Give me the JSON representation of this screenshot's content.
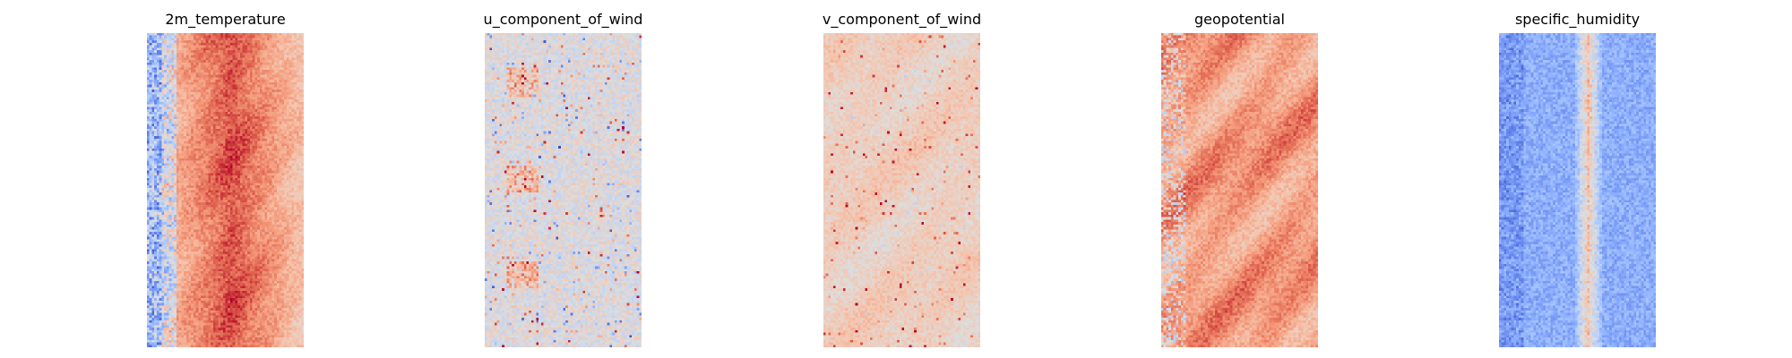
{
  "chart_data": [
    {
      "type": "heatmap",
      "title": "2m_temperature",
      "colormap": "coolwarm",
      "grid": false,
      "axes": "off",
      "cells": {
        "cols": 64,
        "rows": 128
      },
      "pattern": "warm vertical band in centre, cool dots along left edge",
      "mean_level": 0.78
    },
    {
      "type": "heatmap",
      "title": "u_component_of_wind",
      "colormap": "coolwarm",
      "grid": false,
      "axes": "off",
      "cells": {
        "cols": 64,
        "rows": 128
      },
      "pattern": "mostly neutral grey with scattered red and blue streaks",
      "mean_level": 0.5
    },
    {
      "type": "heatmap",
      "title": "v_component_of_wind",
      "colormap": "coolwarm",
      "grid": false,
      "axes": "off",
      "cells": {
        "cols": 64,
        "rows": 128
      },
      "pattern": "light warm background with darker red and blue patches",
      "mean_level": 0.6
    },
    {
      "type": "heatmap",
      "title": "geopotential",
      "colormap": "coolwarm",
      "grid": false,
      "axes": "off",
      "cells": {
        "cols": 64,
        "rows": 128
      },
      "pattern": "warm salmon field with darker red regions, cool speckles on left",
      "mean_level": 0.78
    },
    {
      "type": "heatmap",
      "title": "specific_humidity",
      "colormap": "coolwarm",
      "grid": false,
      "axes": "off",
      "cells": {
        "cols": 64,
        "rows": 128
      },
      "pattern": "cool blue field with a warm vertical streak in the centre",
      "mean_level": 0.25
    }
  ]
}
